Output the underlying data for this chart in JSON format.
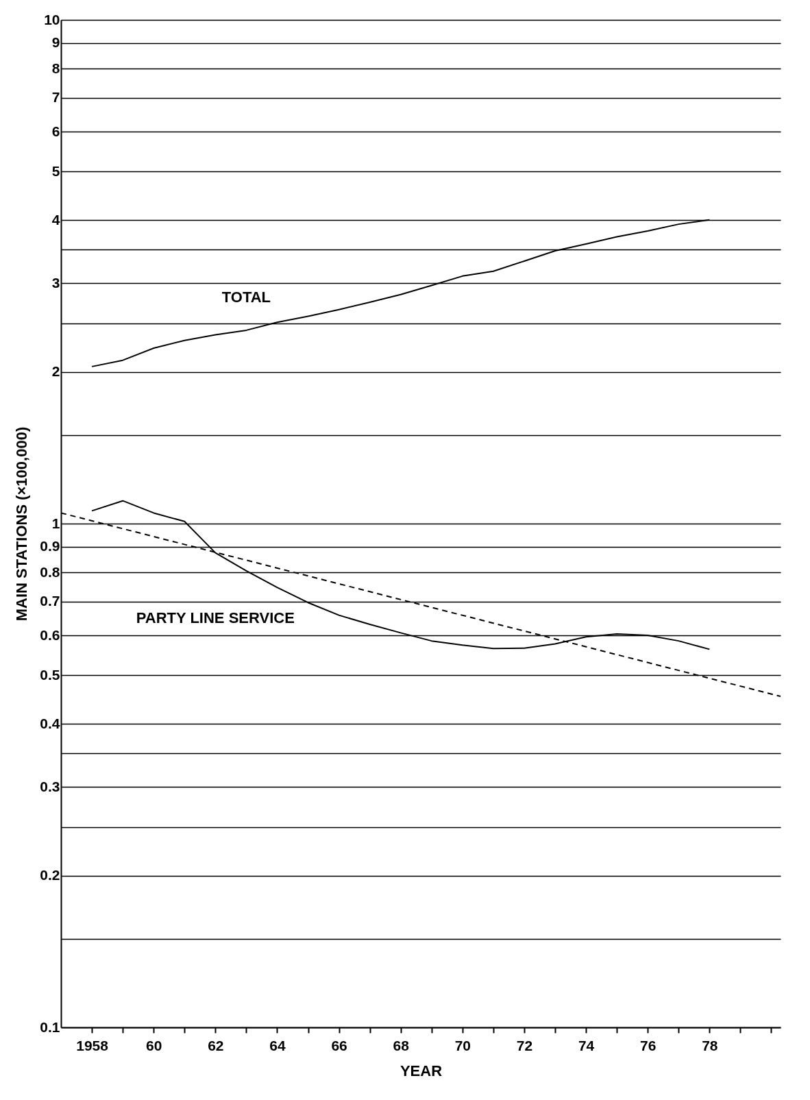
{
  "chart_data": {
    "type": "line",
    "xlabel": "YEAR",
    "ylabel": "MAIN STATIONS (×100,000)",
    "log": "y",
    "grid": "y",
    "line_style": "solid",
    "marker": "none",
    "x": [
      1958,
      1959,
      1960,
      1961,
      1962,
      1963,
      1964,
      1965,
      1966,
      1967,
      1968,
      1969,
      1970,
      1971,
      1972,
      1973,
      1974,
      1975,
      1976,
      1977,
      1978
    ],
    "xlim": [
      1957,
      1980.3
    ],
    "xticks": [
      {
        "value": 1958,
        "label": "1958"
      },
      {
        "value": 1959,
        "label": null
      },
      {
        "value": 1960,
        "label": "60"
      },
      {
        "value": 1961,
        "label": null
      },
      {
        "value": 1962,
        "label": "62"
      },
      {
        "value": 1963,
        "label": null
      },
      {
        "value": 1964,
        "label": "64"
      },
      {
        "value": 1965,
        "label": null
      },
      {
        "value": 1966,
        "label": "66"
      },
      {
        "value": 1967,
        "label": null
      },
      {
        "value": 1968,
        "label": "68"
      },
      {
        "value": 1969,
        "label": null
      },
      {
        "value": 1970,
        "label": "70"
      },
      {
        "value": 1971,
        "label": null
      },
      {
        "value": 1972,
        "label": "72"
      },
      {
        "value": 1973,
        "label": null
      },
      {
        "value": 1974,
        "label": "74"
      },
      {
        "value": 1975,
        "label": null
      },
      {
        "value": 1976,
        "label": "76"
      },
      {
        "value": 1977,
        "label": null
      },
      {
        "value": 1978,
        "label": "78"
      },
      {
        "value": 1979,
        "label": null
      },
      {
        "value": 1980,
        "label": null
      }
    ],
    "ylim": [
      0.1,
      10
    ],
    "yticks": [
      0.1,
      {
        "value": 0.15,
        "label": null
      },
      0.2,
      {
        "value": 0.25,
        "label": null
      },
      0.3,
      {
        "value": 0.35,
        "label": null
      },
      0.4,
      0.5,
      0.6,
      0.7,
      0.8,
      0.9,
      1,
      {
        "value": 1.5,
        "label": null
      },
      2,
      {
        "value": 2.5,
        "label": null
      },
      3,
      {
        "value": 3.5,
        "label": null
      },
      4,
      5,
      6,
      7,
      8,
      9,
      10
    ],
    "series": [
      {
        "name": "TOTAL",
        "color": "#000000",
        "values": [
          2.05,
          2.11,
          2.23,
          2.31,
          2.37,
          2.42,
          2.51,
          2.58,
          2.66,
          2.75,
          2.85,
          2.97,
          3.1,
          3.17,
          3.32,
          3.48,
          3.59,
          3.71,
          3.81,
          3.93,
          4.01
        ]
      },
      {
        "name": "PARTY LINE SERVICE",
        "color": "#000000",
        "values": [
          1.06,
          1.11,
          1.05,
          1.01,
          0.875,
          0.806,
          0.747,
          0.697,
          0.658,
          0.631,
          0.607,
          0.585,
          0.574,
          0.565,
          0.566,
          0.577,
          0.596,
          0.604,
          0.6,
          0.585,
          0.563
        ]
      },
      {
        "type": "line",
        "color": "#000000",
        "line_style": "dashed",
        "x": [
          1957,
          1980.3
        ],
        "values": [
          1.05,
          0.454
        ]
      }
    ]
  }
}
